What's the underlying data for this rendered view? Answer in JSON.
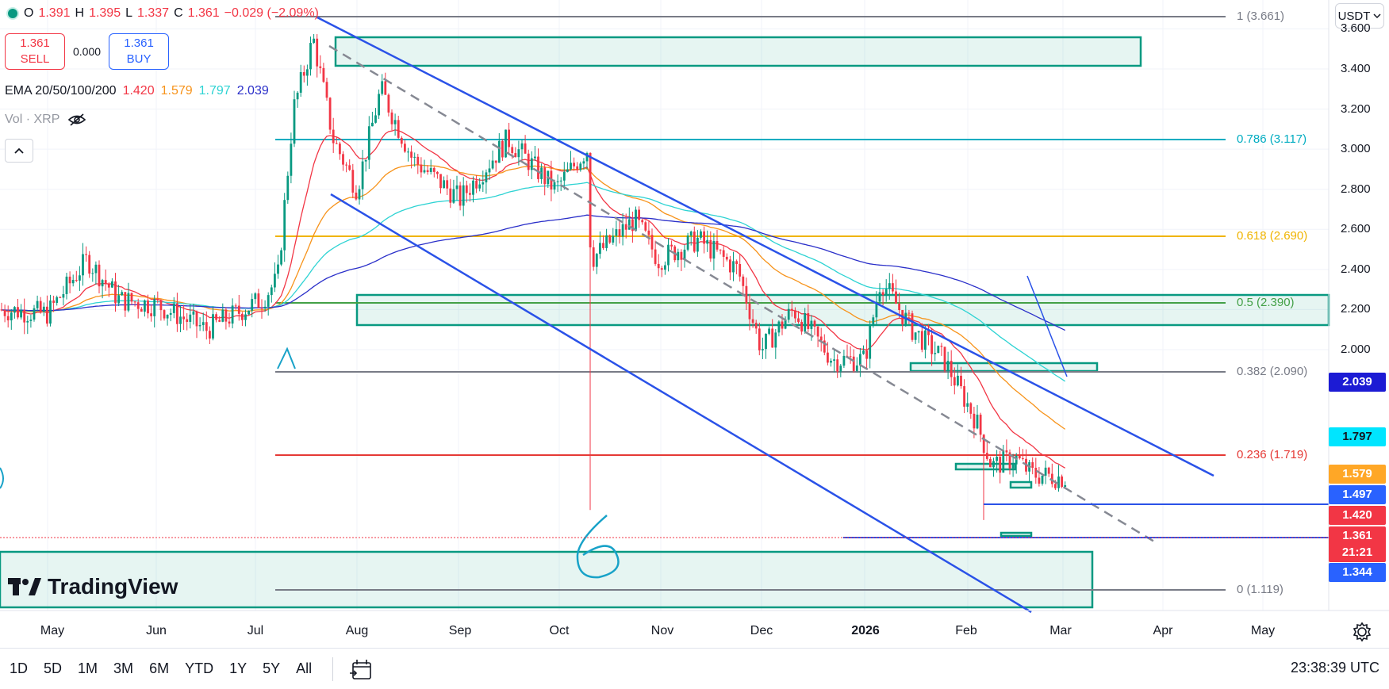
{
  "ohlc": {
    "open_label": "O",
    "open": "1.391",
    "high_label": "H",
    "high": "1.395",
    "low_label": "L",
    "low": "1.337",
    "close_label": "C",
    "close": "1.361",
    "change": "−0.029 (−2.09%)"
  },
  "trade": {
    "sell_price": "1.361",
    "sell_label": "SELL",
    "spread": "0.000",
    "buy_price": "1.361",
    "buy_label": "BUY"
  },
  "ema": {
    "label": "EMA 20/50/100/200",
    "v20": "1.420",
    "v50": "1.579",
    "v100": "1.797",
    "v200": "2.039",
    "c20": "#f23645",
    "c50": "#f7931a",
    "c100": "#2ed3d3",
    "c200": "#2a2fc9"
  },
  "volume": {
    "label": "Vol · XRP"
  },
  "currency": {
    "label": "USDT"
  },
  "price_axis": [
    "3.600",
    "3.400",
    "3.200",
    "3.000",
    "2.800",
    "2.600",
    "2.400",
    "2.200",
    "2.000"
  ],
  "price_tags": [
    {
      "value": "2.039",
      "color": "#1c1bd4",
      "text_color": "#ffffff"
    },
    {
      "value": "1.797",
      "color": "#00e5ff",
      "text_color": "#131722"
    },
    {
      "value": "1.579",
      "color": "#ffa726",
      "text_color": "#ffffff"
    },
    {
      "value": "1.497",
      "color": "#2962ff",
      "text_color": "#ffffff"
    },
    {
      "value": "1.420",
      "color": "#f23645",
      "text_color": "#ffffff"
    },
    {
      "value": "1.361",
      "color": "#f23645",
      "text_color": "#ffffff"
    },
    {
      "value": "21:21",
      "color": "#f23645",
      "text_color": "#ffffff"
    },
    {
      "value": "1.344",
      "color": "#2962ff",
      "text_color": "#ffffff"
    }
  ],
  "fib_levels": [
    {
      "label": "1 (3.661)",
      "price": 3.661,
      "color": "#787b86"
    },
    {
      "label": "0.786 (3.117)",
      "price": 3.117,
      "color": "#00acc1"
    },
    {
      "label": "0.618 (2.690)",
      "price": 2.69,
      "color": "#f0b400"
    },
    {
      "label": "0.5 (2.390)",
      "price": 2.39,
      "color": "#43a047"
    },
    {
      "label": "0.382 (2.090)",
      "price": 2.09,
      "color": "#787b86"
    },
    {
      "label": "0.236 (1.719)",
      "price": 1.719,
      "color": "#e53935"
    },
    {
      "label": "0 (1.119)",
      "price": 1.119,
      "color": "#787b86"
    }
  ],
  "time_axis": [
    "May",
    "Jun",
    "Jul",
    "Aug",
    "Sep",
    "Oct",
    "Nov",
    "Dec",
    "2026",
    "Feb",
    "Mar",
    "Apr",
    "May"
  ],
  "annotation_text": "6",
  "watermark": "TradingView",
  "timeframes": [
    "1D",
    "5D",
    "1M",
    "3M",
    "6M",
    "YTD",
    "1Y",
    "5Y",
    "All"
  ],
  "clock": "23:38:39 UTC",
  "icons": {
    "hide": "eye-slash-icon",
    "collapse": "chevron-up-icon",
    "dropdown": "chevron-down-icon",
    "date_range": "calendar-range-icon",
    "settings": "gear-icon",
    "status": "market-status-dot-icon"
  },
  "colors": {
    "up": "#089981",
    "down": "#f23645",
    "trendline": "#2a52e8",
    "zone": "#089981"
  }
}
